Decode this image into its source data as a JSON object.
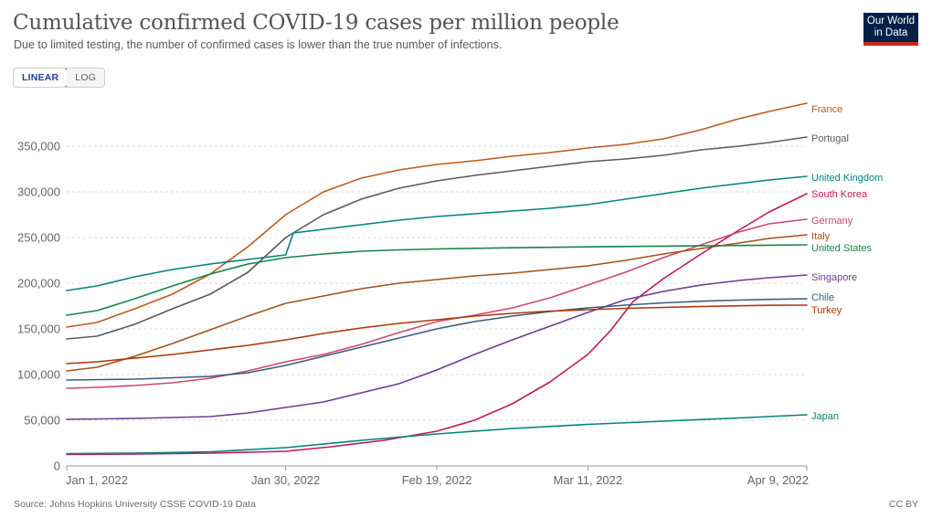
{
  "header": {
    "title": "Cumulative confirmed COVID-19 cases per million people",
    "subtitle": "Due to limited testing, the number of confirmed cases is lower than the true number of infections.",
    "logo_line1": "Our World",
    "logo_line2": "in Data"
  },
  "controls": {
    "linear_label": "LINEAR",
    "log_label": "LOG",
    "selected": "linear"
  },
  "footer": {
    "source": "Source: Johns Hopkins University CSSE COVID-19 Data",
    "license": "CC BY"
  },
  "chart_data": {
    "type": "line",
    "title": "Cumulative confirmed COVID-19 cases per million people",
    "xlabel": "",
    "ylabel": "",
    "x_range": [
      "2022-01-01",
      "2022-04-09"
    ],
    "x_ticks": [
      "2022-01-01",
      "2022-01-30",
      "2022-02-19",
      "2022-03-11",
      "2022-04-09"
    ],
    "x_tick_labels": [
      "Jan 1, 2022",
      "Jan 30, 2022",
      "Feb 19, 2022",
      "Mar 11, 2022",
      "Apr 9, 2022"
    ],
    "ylim": [
      0,
      400000
    ],
    "y_ticks": [
      0,
      50000,
      100000,
      150000,
      200000,
      250000,
      300000,
      350000
    ],
    "y_tick_labels": [
      "0",
      "50,000",
      "100,000",
      "150,000",
      "200,000",
      "250,000",
      "300,000",
      "350,000"
    ],
    "grid": "horizontal-dashed",
    "legend": "line-end labels on right",
    "series": [
      {
        "name": "France",
        "color": "#be5a1b",
        "points": [
          [
            "2022-01-01",
            152000
          ],
          [
            "2022-01-05",
            157000
          ],
          [
            "2022-01-10",
            172000
          ],
          [
            "2022-01-15",
            188000
          ],
          [
            "2022-01-20",
            210000
          ],
          [
            "2022-01-25",
            240000
          ],
          [
            "2022-01-30",
            275000
          ],
          [
            "2022-02-04",
            300000
          ],
          [
            "2022-02-09",
            315000
          ],
          [
            "2022-02-14",
            324000
          ],
          [
            "2022-02-19",
            330000
          ],
          [
            "2022-02-24",
            334000
          ],
          [
            "2022-03-01",
            339000
          ],
          [
            "2022-03-06",
            343000
          ],
          [
            "2022-03-11",
            348000
          ],
          [
            "2022-03-16",
            352000
          ],
          [
            "2022-03-21",
            358000
          ],
          [
            "2022-03-26",
            368000
          ],
          [
            "2022-03-31",
            380000
          ],
          [
            "2022-04-04",
            388000
          ],
          [
            "2022-04-09",
            397000
          ]
        ]
      },
      {
        "name": "Portugal",
        "color": "#5b5b5b",
        "points": [
          [
            "2022-01-01",
            139000
          ],
          [
            "2022-01-05",
            142000
          ],
          [
            "2022-01-10",
            155000
          ],
          [
            "2022-01-15",
            172000
          ],
          [
            "2022-01-20",
            188000
          ],
          [
            "2022-01-25",
            212000
          ],
          [
            "2022-01-30",
            250000
          ],
          [
            "2022-02-04",
            275000
          ],
          [
            "2022-02-09",
            292000
          ],
          [
            "2022-02-14",
            304000
          ],
          [
            "2022-02-19",
            312000
          ],
          [
            "2022-02-24",
            318000
          ],
          [
            "2022-03-01",
            323000
          ],
          [
            "2022-03-06",
            328000
          ],
          [
            "2022-03-11",
            333000
          ],
          [
            "2022-03-16",
            336000
          ],
          [
            "2022-03-21",
            340000
          ],
          [
            "2022-03-26",
            346000
          ],
          [
            "2022-03-31",
            350000
          ],
          [
            "2022-04-04",
            354000
          ],
          [
            "2022-04-09",
            360000
          ]
        ]
      },
      {
        "name": "United Kingdom",
        "color": "#00847e",
        "points": [
          [
            "2022-01-01",
            192000
          ],
          [
            "2022-01-05",
            197000
          ],
          [
            "2022-01-10",
            207000
          ],
          [
            "2022-01-15",
            215000
          ],
          [
            "2022-01-20",
            221000
          ],
          [
            "2022-01-25",
            226000
          ],
          [
            "2022-01-30",
            231000
          ],
          [
            "2022-01-31",
            255000
          ],
          [
            "2022-02-04",
            259000
          ],
          [
            "2022-02-09",
            264000
          ],
          [
            "2022-02-14",
            269000
          ],
          [
            "2022-02-19",
            273000
          ],
          [
            "2022-02-24",
            276000
          ],
          [
            "2022-03-01",
            279000
          ],
          [
            "2022-03-06",
            282000
          ],
          [
            "2022-03-11",
            286000
          ],
          [
            "2022-03-16",
            292000
          ],
          [
            "2022-03-21",
            298000
          ],
          [
            "2022-03-26",
            304000
          ],
          [
            "2022-03-31",
            309000
          ],
          [
            "2022-04-04",
            313000
          ],
          [
            "2022-04-09",
            317000
          ]
        ]
      },
      {
        "name": "South Korea",
        "color": "#c2185b",
        "points": [
          [
            "2022-01-01",
            12500
          ],
          [
            "2022-01-10",
            13000
          ],
          [
            "2022-01-20",
            14000
          ],
          [
            "2022-01-30",
            16000
          ],
          [
            "2022-02-05",
            21000
          ],
          [
            "2022-02-12",
            28000
          ],
          [
            "2022-02-19",
            38000
          ],
          [
            "2022-02-24",
            50000
          ],
          [
            "2022-03-01",
            68000
          ],
          [
            "2022-03-06",
            92000
          ],
          [
            "2022-03-11",
            122000
          ],
          [
            "2022-03-14",
            148000
          ],
          [
            "2022-03-17",
            180000
          ],
          [
            "2022-03-21",
            205000
          ],
          [
            "2022-03-26",
            232000
          ],
          [
            "2022-03-31",
            258000
          ],
          [
            "2022-04-04",
            278000
          ],
          [
            "2022-04-09",
            298000
          ]
        ]
      },
      {
        "name": "Germany",
        "color": "#d1466d",
        "points": [
          [
            "2022-01-01",
            85000
          ],
          [
            "2022-01-05",
            86000
          ],
          [
            "2022-01-10",
            88000
          ],
          [
            "2022-01-15",
            91000
          ],
          [
            "2022-01-20",
            96000
          ],
          [
            "2022-01-25",
            104000
          ],
          [
            "2022-01-30",
            114000
          ],
          [
            "2022-02-04",
            122000
          ],
          [
            "2022-02-09",
            133000
          ],
          [
            "2022-02-14",
            146000
          ],
          [
            "2022-02-19",
            158000
          ],
          [
            "2022-02-24",
            165000
          ],
          [
            "2022-03-01",
            173000
          ],
          [
            "2022-03-06",
            184000
          ],
          [
            "2022-03-11",
            198000
          ],
          [
            "2022-03-16",
            212000
          ],
          [
            "2022-03-21",
            228000
          ],
          [
            "2022-03-26",
            242000
          ],
          [
            "2022-03-31",
            256000
          ],
          [
            "2022-04-04",
            265000
          ],
          [
            "2022-04-09",
            270000
          ]
        ]
      },
      {
        "name": "Italy",
        "color": "#a2531b",
        "points": [
          [
            "2022-01-01",
            104000
          ],
          [
            "2022-01-05",
            108000
          ],
          [
            "2022-01-10",
            120000
          ],
          [
            "2022-01-15",
            134000
          ],
          [
            "2022-01-20",
            149000
          ],
          [
            "2022-01-25",
            164000
          ],
          [
            "2022-01-30",
            178000
          ],
          [
            "2022-02-04",
            186000
          ],
          [
            "2022-02-09",
            194000
          ],
          [
            "2022-02-14",
            200000
          ],
          [
            "2022-02-19",
            204000
          ],
          [
            "2022-02-24",
            208000
          ],
          [
            "2022-03-01",
            211000
          ],
          [
            "2022-03-06",
            215000
          ],
          [
            "2022-03-11",
            219000
          ],
          [
            "2022-03-16",
            225000
          ],
          [
            "2022-03-21",
            232000
          ],
          [
            "2022-03-26",
            238000
          ],
          [
            "2022-03-31",
            244000
          ],
          [
            "2022-04-04",
            249000
          ],
          [
            "2022-04-09",
            253000
          ]
        ]
      },
      {
        "name": "United States",
        "color": "#18834a",
        "points": [
          [
            "2022-01-01",
            165000
          ],
          [
            "2022-01-05",
            170000
          ],
          [
            "2022-01-10",
            183000
          ],
          [
            "2022-01-15",
            197000
          ],
          [
            "2022-01-20",
            210000
          ],
          [
            "2022-01-25",
            221000
          ],
          [
            "2022-01-30",
            228000
          ],
          [
            "2022-02-04",
            232000
          ],
          [
            "2022-02-09",
            235000
          ],
          [
            "2022-02-14",
            236500
          ],
          [
            "2022-02-19",
            237500
          ],
          [
            "2022-02-24",
            238200
          ],
          [
            "2022-03-01",
            238800
          ],
          [
            "2022-03-06",
            239300
          ],
          [
            "2022-03-11",
            239800
          ],
          [
            "2022-03-16",
            240200
          ],
          [
            "2022-03-21",
            240600
          ],
          [
            "2022-03-26",
            241000
          ],
          [
            "2022-03-31",
            241300
          ],
          [
            "2022-04-04",
            241600
          ],
          [
            "2022-04-09",
            242000
          ]
        ]
      },
      {
        "name": "Singapore",
        "color": "#6d3e91",
        "points": [
          [
            "2022-01-01",
            51000
          ],
          [
            "2022-01-10",
            52000
          ],
          [
            "2022-01-20",
            54000
          ],
          [
            "2022-01-25",
            58000
          ],
          [
            "2022-01-30",
            64000
          ],
          [
            "2022-02-04",
            70000
          ],
          [
            "2022-02-09",
            80000
          ],
          [
            "2022-02-14",
            90000
          ],
          [
            "2022-02-19",
            105000
          ],
          [
            "2022-02-24",
            122000
          ],
          [
            "2022-03-01",
            138000
          ],
          [
            "2022-03-06",
            153000
          ],
          [
            "2022-03-11",
            168000
          ],
          [
            "2022-03-16",
            182000
          ],
          [
            "2022-03-21",
            191000
          ],
          [
            "2022-03-26",
            198000
          ],
          [
            "2022-03-31",
            203000
          ],
          [
            "2022-04-04",
            206000
          ],
          [
            "2022-04-09",
            209000
          ]
        ]
      },
      {
        "name": "Chile",
        "color": "#3a5d7c",
        "points": [
          [
            "2022-01-01",
            94000
          ],
          [
            "2022-01-10",
            95000
          ],
          [
            "2022-01-20",
            98000
          ],
          [
            "2022-01-25",
            102000
          ],
          [
            "2022-01-30",
            110000
          ],
          [
            "2022-02-04",
            120000
          ],
          [
            "2022-02-09",
            130000
          ],
          [
            "2022-02-14",
            140000
          ],
          [
            "2022-02-19",
            150000
          ],
          [
            "2022-02-24",
            158000
          ],
          [
            "2022-03-01",
            164000
          ],
          [
            "2022-03-06",
            169000
          ],
          [
            "2022-03-11",
            173000
          ],
          [
            "2022-03-16",
            176000
          ],
          [
            "2022-03-21",
            178500
          ],
          [
            "2022-03-26",
            180300
          ],
          [
            "2022-03-31",
            181500
          ],
          [
            "2022-04-04",
            182300
          ],
          [
            "2022-04-09",
            183000
          ]
        ]
      },
      {
        "name": "Turkey",
        "color": "#b13507",
        "points": [
          [
            "2022-01-01",
            112000
          ],
          [
            "2022-01-05",
            114000
          ],
          [
            "2022-01-10",
            118000
          ],
          [
            "2022-01-15",
            122000
          ],
          [
            "2022-01-20",
            127000
          ],
          [
            "2022-01-25",
            132000
          ],
          [
            "2022-01-30",
            138000
          ],
          [
            "2022-02-04",
            145000
          ],
          [
            "2022-02-09",
            151000
          ],
          [
            "2022-02-14",
            156000
          ],
          [
            "2022-02-19",
            160000
          ],
          [
            "2022-02-24",
            164000
          ],
          [
            "2022-03-01",
            167000
          ],
          [
            "2022-03-06",
            169500
          ],
          [
            "2022-03-11",
            171000
          ],
          [
            "2022-03-16",
            172500
          ],
          [
            "2022-03-21",
            173500
          ],
          [
            "2022-03-26",
            174500
          ],
          [
            "2022-03-31",
            175300
          ],
          [
            "2022-04-04",
            175800
          ],
          [
            "2022-04-09",
            176000
          ]
        ]
      },
      {
        "name": "Japan",
        "color": "#00847e",
        "points": [
          [
            "2022-01-01",
            13500
          ],
          [
            "2022-01-10",
            14000
          ],
          [
            "2022-01-20",
            15500
          ],
          [
            "2022-01-30",
            20000
          ],
          [
            "2022-02-09",
            28000
          ],
          [
            "2022-02-19",
            35000
          ],
          [
            "2022-03-01",
            41000
          ],
          [
            "2022-03-11",
            45500
          ],
          [
            "2022-03-21",
            49000
          ],
          [
            "2022-03-31",
            52500
          ],
          [
            "2022-04-09",
            56000
          ]
        ]
      }
    ],
    "end_labels": [
      {
        "name": "France",
        "y": 391000
      },
      {
        "name": "Portugal",
        "y": 359000
      },
      {
        "name": "United Kingdom",
        "y": 316000
      },
      {
        "name": "South Korea",
        "y": 298000
      },
      {
        "name": "Germany",
        "y": 269000
      },
      {
        "name": "Italy",
        "y": 252000
      },
      {
        "name": "United States",
        "y": 239000
      },
      {
        "name": "Singapore",
        "y": 207000
      },
      {
        "name": "Chile",
        "y": 185000
      },
      {
        "name": "Turkey",
        "y": 171000
      },
      {
        "name": "Japan",
        "y": 55000
      }
    ]
  }
}
